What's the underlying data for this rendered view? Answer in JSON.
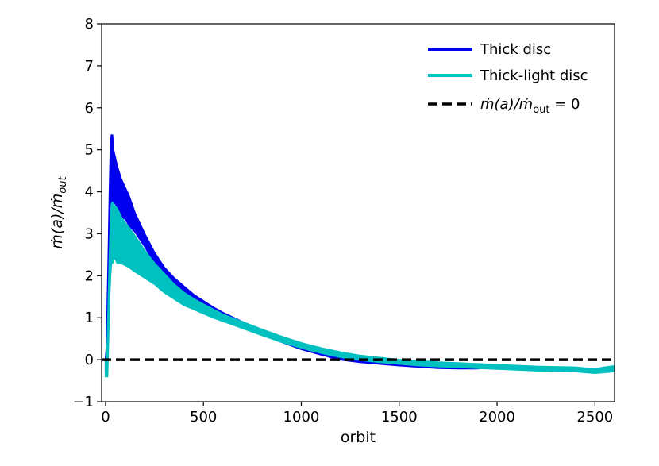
{
  "chart_data": {
    "type": "line",
    "xlabel": "orbit",
    "ylabel_main": "ṁ(a)/ṁ",
    "ylabel_sub": "out",
    "xlim": [
      -20,
      2600
    ],
    "ylim": [
      -1,
      8
    ],
    "xticks": [
      0,
      500,
      1000,
      1500,
      2000,
      2500
    ],
    "yticks": [
      -1,
      0,
      1,
      2,
      3,
      4,
      5,
      6,
      7,
      8
    ],
    "legend_position": "top-right",
    "series": [
      {
        "name": "Thick disc",
        "color": "#0000ee",
        "x": [
          0,
          5,
          10,
          15,
          20,
          25,
          30,
          35,
          40,
          50,
          60,
          70,
          80,
          100,
          120,
          150,
          200,
          250,
          300,
          350,
          400,
          450,
          500,
          550,
          600,
          700,
          800,
          900,
          1000,
          1100,
          1200,
          1300,
          1400,
          1500,
          1600,
          1700,
          1800,
          1900,
          1950,
          2000
        ],
        "upper": [
          0.0,
          0.3,
          1.5,
          2.6,
          4.0,
          5.0,
          5.35,
          5.35,
          5.0,
          4.8,
          4.6,
          4.45,
          4.3,
          4.1,
          3.9,
          3.5,
          3.0,
          2.55,
          2.2,
          1.95,
          1.75,
          1.55,
          1.4,
          1.25,
          1.12,
          0.9,
          0.7,
          0.5,
          0.33,
          0.2,
          0.08,
          0.0,
          -0.04,
          -0.08,
          -0.12,
          -0.16,
          -0.18,
          -0.18,
          -0.16,
          -0.13
        ],
        "lower": [
          -0.3,
          -0.2,
          0.5,
          1.8,
          2.6,
          3.3,
          3.6,
          3.75,
          3.7,
          3.75,
          3.6,
          3.5,
          3.4,
          3.35,
          3.2,
          3.05,
          2.7,
          2.3,
          2.0,
          1.8,
          1.6,
          1.45,
          1.3,
          1.18,
          1.05,
          0.82,
          0.6,
          0.42,
          0.25,
          0.12,
          0.0,
          -0.06,
          -0.1,
          -0.14,
          -0.17,
          -0.2,
          -0.21,
          -0.21,
          -0.18,
          -0.14
        ]
      },
      {
        "name": "Thick-light disc",
        "color": "#00c0c0",
        "x": [
          0,
          5,
          10,
          15,
          20,
          25,
          30,
          35,
          40,
          50,
          60,
          70,
          80,
          100,
          120,
          150,
          200,
          250,
          300,
          350,
          400,
          450,
          500,
          550,
          600,
          700,
          800,
          900,
          1000,
          1100,
          1200,
          1300,
          1400,
          1500,
          1600,
          1700,
          1800,
          1900,
          2000,
          2100,
          2200,
          2300,
          2400,
          2450,
          2500,
          2550,
          2600
        ],
        "upper": [
          0.0,
          0.0,
          0.5,
          1.5,
          2.5,
          3.2,
          3.7,
          3.75,
          3.7,
          3.65,
          3.6,
          3.5,
          3.4,
          3.25,
          3.15,
          2.95,
          2.6,
          2.3,
          2.05,
          1.8,
          1.6,
          1.45,
          1.32,
          1.2,
          1.08,
          0.9,
          0.72,
          0.55,
          0.4,
          0.28,
          0.18,
          0.1,
          0.05,
          0.0,
          -0.03,
          -0.06,
          -0.08,
          -0.1,
          -0.12,
          -0.14,
          -0.16,
          -0.17,
          -0.18,
          -0.2,
          -0.22,
          -0.18,
          -0.15
        ],
        "lower": [
          -0.4,
          -0.4,
          -0.4,
          0.5,
          1.5,
          2.0,
          2.3,
          2.3,
          2.4,
          2.4,
          2.3,
          2.3,
          2.3,
          2.25,
          2.2,
          2.1,
          1.95,
          1.8,
          1.6,
          1.45,
          1.3,
          1.2,
          1.1,
          1.0,
          0.92,
          0.75,
          0.58,
          0.42,
          0.28,
          0.16,
          0.06,
          -0.01,
          -0.06,
          -0.1,
          -0.14,
          -0.16,
          -0.18,
          -0.2,
          -0.22,
          -0.24,
          -0.26,
          -0.27,
          -0.28,
          -0.3,
          -0.32,
          -0.3,
          -0.28
        ]
      },
      {
        "name": "ṁ(a)/ṁout = 0",
        "color": "#000000",
        "x": [
          -20,
          2600
        ],
        "values": [
          0,
          0
        ]
      }
    ],
    "legend": [
      {
        "label": "Thick disc",
        "color": "#0000ee",
        "style": "solid"
      },
      {
        "label": "Thick-light disc",
        "color": "#00c0c0",
        "style": "solid"
      },
      {
        "label_main": "ṁ(a)/ṁ",
        "label_sub": "out",
        "label_tail": " = 0",
        "color": "#000000",
        "style": "dashed"
      }
    ]
  }
}
